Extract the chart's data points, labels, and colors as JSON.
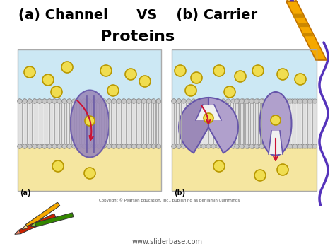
{
  "bg_color": "#ffffff",
  "title_line1": "(a) Channel      VS    (b) Carrier",
  "title_line2": "Proteins",
  "title_fontsize": 14,
  "title2_fontsize": 16,
  "panel_a_label": "(a)",
  "panel_b_label": "(b)",
  "copyright": "Copyright © Pearson Education, Inc., publishing as Benjamin Cummings",
  "website": "www.sliderbase.com",
  "panel_bg_top": "#cce8f4",
  "panel_bg_bot": "#f5e6a0",
  "membrane_head_color": "#c8c8c8",
  "membrane_head_edge": "#888888",
  "protein_color_a": "#9b89b8",
  "protein_color_b": "#9b89b8",
  "molecule_color": "#f0dd50",
  "molecule_edge": "#b89800",
  "arrow_color": "#cc1133",
  "crayon_body": "#f5a800",
  "crayon_band1": "#cc8800",
  "crayon_tip_color": "#e8c060",
  "purple_squiggle": "#5533bb",
  "pencil_yellow": "#f5a800",
  "pencil_red": "#cc2200",
  "pencil_green": "#338800"
}
